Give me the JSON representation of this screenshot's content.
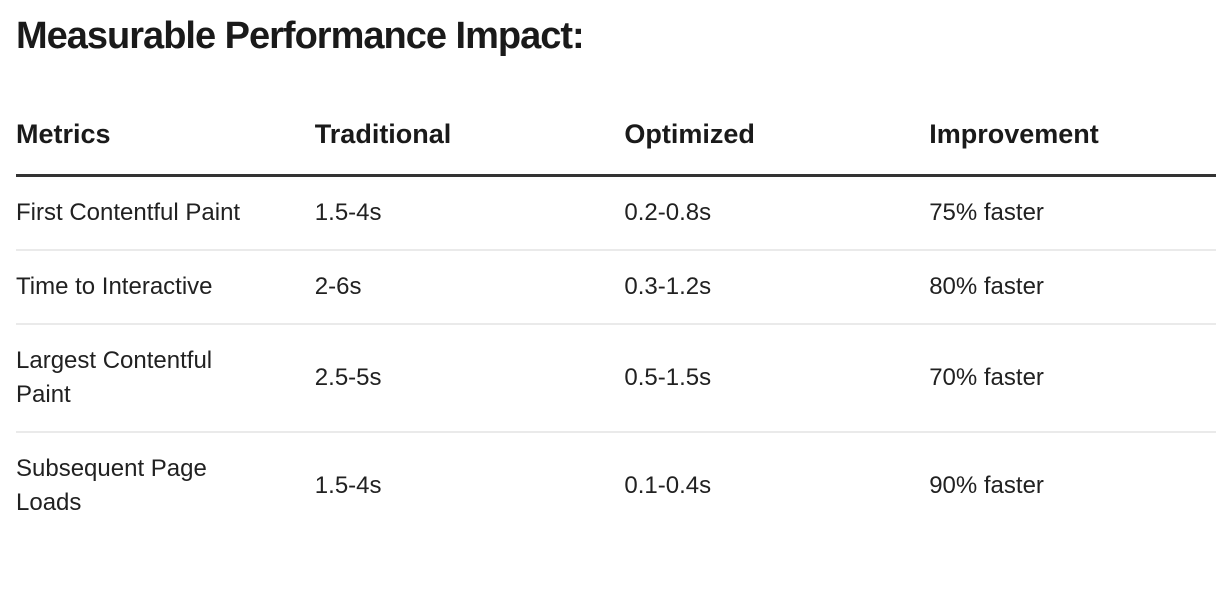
{
  "page": {
    "title": "Measurable Performance Impact:"
  },
  "table": {
    "columns": [
      "Metrics",
      "Traditional",
      "Optimized",
      "Improvement"
    ],
    "rows": [
      {
        "metric": "First Contentful Paint",
        "traditional": "1.5-4s",
        "optimized": "0.2-0.8s",
        "improvement": "75% faster"
      },
      {
        "metric": "Time to Interactive",
        "traditional": "2-6s",
        "optimized": "0.3-1.2s",
        "improvement": "80% faster"
      },
      {
        "metric": "Largest Contentful Paint",
        "traditional": "2.5-5s",
        "optimized": "0.5-1.5s",
        "improvement": "70% faster"
      },
      {
        "metric": "Subsequent Page Loads",
        "traditional": "1.5-4s",
        "optimized": "0.1-0.4s",
        "improvement": "90% faster"
      }
    ]
  },
  "colors": {
    "text": "#212121",
    "header_rule": "#333333",
    "row_divider": "#eaeaea"
  }
}
